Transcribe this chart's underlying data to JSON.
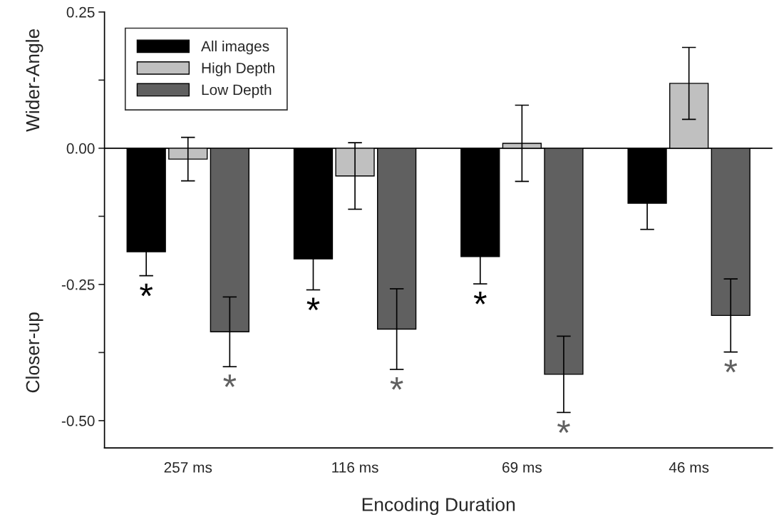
{
  "chart_data": {
    "type": "bar",
    "xlabel": "Encoding Duration",
    "annotations": [
      "Wider-Angle",
      "Closer-up"
    ],
    "categories": [
      "257 ms",
      "116 ms",
      "69 ms",
      "46 ms"
    ],
    "series": [
      {
        "name": "All images",
        "color": "#000000",
        "values": [
          -0.19,
          -0.203,
          -0.199,
          -0.101
        ],
        "errors": [
          0.044,
          0.057,
          0.05,
          0.048
        ],
        "value_labels": [
          "*",
          "*",
          "*",
          null
        ]
      },
      {
        "name": "High Depth",
        "color": "#c0c0c0",
        "values": [
          -0.02,
          -0.051,
          0.009,
          0.119
        ],
        "errors": [
          0.04,
          0.061,
          0.07,
          0.066
        ]
      },
      {
        "name": "Low Depth",
        "color": "#606060",
        "values": [
          -0.337,
          -0.332,
          -0.415,
          -0.307
        ],
        "errors": [
          0.064,
          0.074,
          0.07,
          0.067
        ],
        "value_labels": [
          "*",
          "*",
          "*",
          "*"
        ]
      }
    ],
    "ylim": [
      -0.55,
      0.25
    ],
    "yticks": [
      {
        "value": 0.25,
        "label": "0.25"
      },
      {
        "value": 0.125,
        "label": null
      },
      {
        "value": 0,
        "label": "0.00"
      },
      {
        "value": -0.125,
        "label": null
      },
      {
        "value": -0.25,
        "label": "-0.25"
      },
      {
        "value": -0.375,
        "label": null
      },
      {
        "value": -0.5,
        "label": "-0.50"
      }
    ],
    "ref_lines": [
      {
        "axis": "y",
        "value": 0,
        "color": "#000000"
      }
    ],
    "legend": "top left",
    "grid": false
  }
}
